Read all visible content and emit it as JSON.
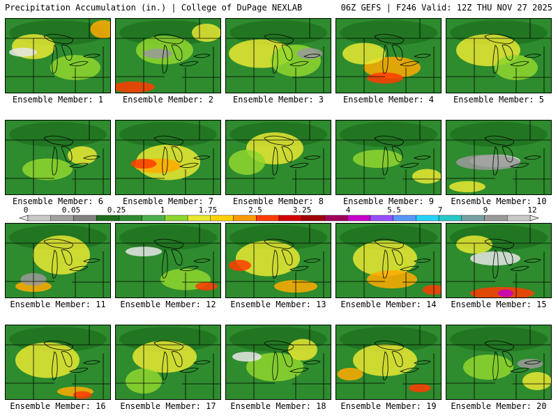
{
  "header": {
    "title": "Precipitation Accumulation (in.) | College of DuPage NEXLAB",
    "run": "06Z GEFS | F246 Valid: 12Z THU NOV 27 2025"
  },
  "member_prefix": "Ensemble Member:",
  "members": [
    1,
    2,
    3,
    4,
    5,
    6,
    7,
    8,
    9,
    10,
    11,
    12,
    13,
    14,
    15,
    16,
    17,
    18,
    19,
    20
  ],
  "colorbar": {
    "labels": [
      "0",
      "0.05",
      "0.25",
      "1",
      "1.75",
      "2.5",
      "3.25",
      "4",
      "5.5",
      "7",
      "9",
      "12"
    ],
    "colors": [
      "#c8c8c8",
      "#a0a0a0",
      "#808080",
      "#1e6e1e",
      "#2e8b2e",
      "#4caf4c",
      "#8fd62e",
      "#e8e832",
      "#ffd200",
      "#ff9a00",
      "#ff3c00",
      "#d20000",
      "#a00000",
      "#a0005a",
      "#c800c8",
      "#9650ff",
      "#5a96ff",
      "#28d2ff",
      "#28c8c8",
      "#78a0a0",
      "#9a9a9a",
      "#c8c8c8"
    ]
  },
  "precip_palette": {
    "base": "#2e8b2e",
    "dark": "#1e6e1e",
    "light": "#4caf4c",
    "lime": "#8fd62e",
    "yellow": "#e8e832",
    "orange": "#ffaa00",
    "red": "#ff3c00",
    "gray": "#9a9a9a",
    "white": "#e6e6e6",
    "magenta": "#c800c8"
  }
}
